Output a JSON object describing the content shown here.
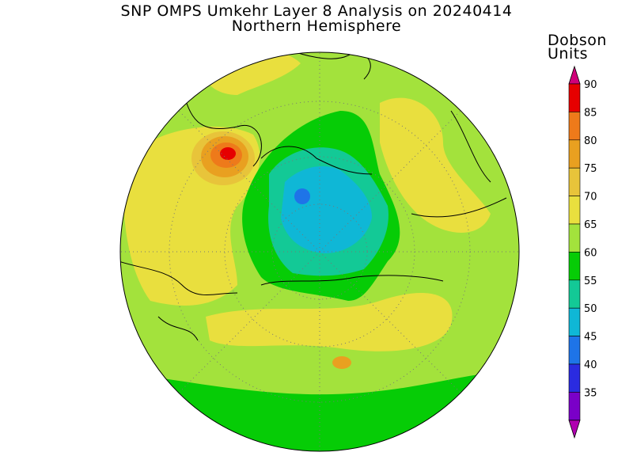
{
  "title": "SNP OMPS Umkehr Layer 8 Analysis on 20240414",
  "subtitle": "Northern Hemisphere",
  "colorbar": {
    "units_line1": "Dobson",
    "units_line2": "Units",
    "levels": [
      {
        "value": "90",
        "color": "#e60000"
      },
      {
        "value": "85",
        "color": "#ee7a1a"
      },
      {
        "value": "80",
        "color": "#e9a020"
      },
      {
        "value": "75",
        "color": "#e8c43a"
      },
      {
        "value": "70",
        "color": "#e9df3e"
      },
      {
        "value": "65",
        "color": "#a3e23c"
      },
      {
        "value": "60",
        "color": "#06cc06"
      },
      {
        "value": "55",
        "color": "#13c996"
      },
      {
        "value": "50",
        "color": "#0fb7d6"
      },
      {
        "value": "45",
        "color": "#1e74e8"
      },
      {
        "value": "40",
        "color": "#2a2be0"
      },
      {
        "value": "35",
        "color": "#7a00c8"
      }
    ],
    "top_cap_color": "#d0007a",
    "bottom_cap_color": "#b000b0"
  },
  "map": {
    "projection": "polar stereographic",
    "hemisphere": "north",
    "background_color": "#a3e23c",
    "grid": true
  }
}
